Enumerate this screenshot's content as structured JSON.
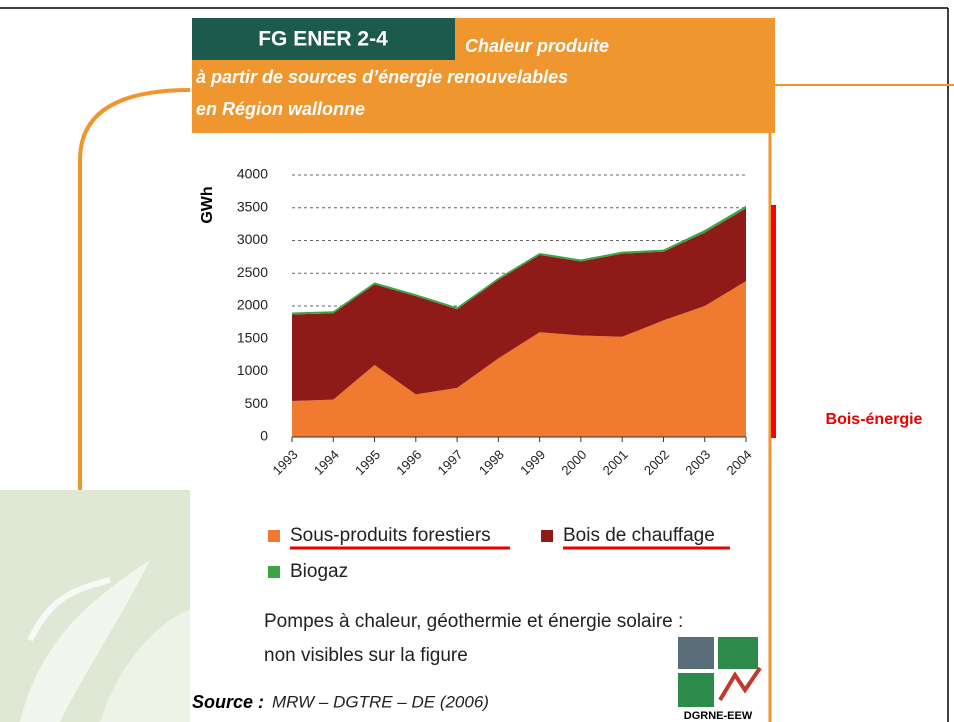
{
  "chart_data": {
    "type": "stacked_area",
    "figure_label": "FG ENER 2-4",
    "title_lines": [
      "Chaleur produite",
      "à partir de sources d’énergie renouvelables",
      "en Région wallonne"
    ],
    "y_label": "GWh",
    "categories": [
      "1993",
      "1994",
      "1995",
      "1996",
      "1997",
      "1998",
      "1999",
      "2000",
      "2001",
      "2002",
      "2003",
      "2004"
    ],
    "series": [
      {
        "name": "Sous-produits forestiers",
        "color": "#f07a30",
        "values": [
          550,
          570,
          1100,
          650,
          750,
          1200,
          1600,
          1550,
          1530,
          1780,
          2000,
          2380
        ]
      },
      {
        "name": "Bois de chauffage",
        "color": "#8e1b17",
        "values": [
          1320,
          1320,
          1230,
          1500,
          1200,
          1200,
          1180,
          1130,
          1270,
          1050,
          1120,
          1110
        ]
      },
      {
        "name": "Biogaz",
        "color": "#39a547",
        "values": [
          30,
          30,
          30,
          30,
          30,
          30,
          30,
          30,
          30,
          30,
          40,
          40
        ]
      }
    ],
    "ylim": [
      0,
      4000
    ],
    "yticks": [
      0,
      500,
      1000,
      1500,
      2000,
      2500,
      3000,
      3500,
      4000
    ],
    "grid": true,
    "note_lines": [
      "Pompes à chaleur, géothermie et énergie solaire :",
      "non visibles sur la figure"
    ],
    "source_label": "Source :",
    "source_text": "MRW – DGTRE – DE (2006)",
    "logo_text": "DGRNE-EEW",
    "annotation": "Bois-énergie"
  }
}
